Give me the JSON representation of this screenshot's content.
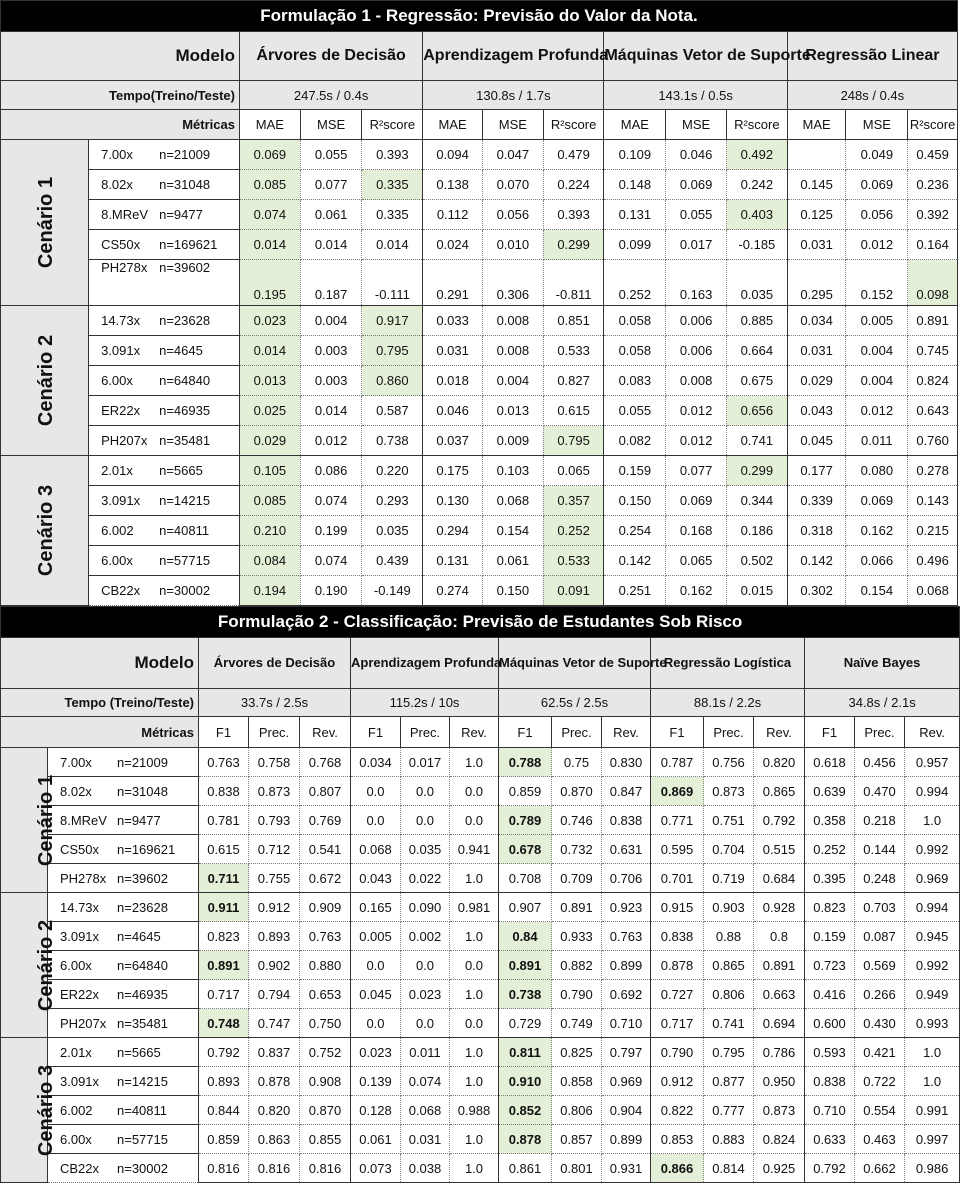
{
  "f1": {
    "title": "Formulação 1 - Regressão: Previsão do Valor da Nota.",
    "model_label": "Modelo",
    "time_label": "Tempo(Treino/Teste)",
    "metrics_label": "Métricas",
    "models": [
      {
        "name": "Árvores de Decisão",
        "time": "247.5s / 0.4s"
      },
      {
        "name": "Aprendizagem Profunda",
        "time": "130.8s / 1.7s"
      },
      {
        "name": "Máquinas Vetor de Suporte",
        "time": "143.1s / 0.5s"
      },
      {
        "name": "Regressão Linear",
        "time": "248s / 0.4s"
      }
    ],
    "metric_names": [
      "MAE",
      "MSE",
      "R²score"
    ],
    "scenarios": [
      {
        "label": "Cenário 1",
        "rows": [
          {
            "course": "7.00x",
            "n": "n=21009",
            "values": [
              "0.069",
              "0.055",
              "0.393",
              "0.094",
              "0.047",
              "0.479",
              "0.109",
              "0.046",
              "0.492",
              "",
              "0.049",
              "0.459"
            ],
            "hl": [
              0,
              8
            ]
          },
          {
            "course": "8.02x",
            "n": "n=31048",
            "values": [
              "0.085",
              "0.077",
              "0.335",
              "0.138",
              "0.070",
              "0.224",
              "0.148",
              "0.069",
              "0.242",
              "0.145",
              "0.069",
              "0.236"
            ],
            "hl": [
              0,
              2
            ]
          },
          {
            "course": "8.MReV",
            "n": "n=9477",
            "values": [
              "0.074",
              "0.061",
              "0.335",
              "0.112",
              "0.056",
              "0.393",
              "0.131",
              "0.055",
              "0.403",
              "0.125",
              "0.056",
              "0.392"
            ],
            "hl": [
              0,
              8
            ]
          },
          {
            "course": "CS50x",
            "n": "n=169621",
            "values": [
              "0.014",
              "0.014",
              "0.014",
              "0.024",
              "0.010",
              "0.299",
              "0.099",
              "0.017",
              "-0.185",
              "0.031",
              "0.012",
              "0.164"
            ],
            "hl": [
              0,
              5
            ]
          },
          {
            "course": "PH278x",
            "n": "n=39602",
            "values": [
              "0.195",
              "0.187",
              "-0.111",
              "0.291",
              "0.306",
              "-0.811",
              "0.252",
              "0.163",
              "0.035",
              "0.295",
              "0.152",
              "0.098"
            ],
            "hl": [
              0,
              11
            ],
            "tall": true
          }
        ]
      },
      {
        "label": "Cenário 2",
        "rows": [
          {
            "course": "14.73x",
            "n": "n=23628",
            "values": [
              "0.023",
              "0.004",
              "0.917",
              "0.033",
              "0.008",
              "0.851",
              "0.058",
              "0.006",
              "0.885",
              "0.034",
              "0.005",
              "0.891"
            ],
            "hl": [
              0,
              2
            ]
          },
          {
            "course": "3.091x",
            "n": "n=4645",
            "values": [
              "0.014",
              "0.003",
              "0.795",
              "0.031",
              "0.008",
              "0.533",
              "0.058",
              "0.006",
              "0.664",
              "0.031",
              "0.004",
              "0.745"
            ],
            "hl": [
              0,
              2
            ]
          },
          {
            "course": "6.00x",
            "n": "n=64840",
            "values": [
              "0.013",
              "0.003",
              "0.860",
              "0.018",
              "0.004",
              "0.827",
              "0.083",
              "0.008",
              "0.675",
              "0.029",
              "0.004",
              "0.824"
            ],
            "hl": [
              0,
              2
            ]
          },
          {
            "course": "ER22x",
            "n": "n=46935",
            "values": [
              "0.025",
              "0.014",
              "0.587",
              "0.046",
              "0.013",
              "0.615",
              "0.055",
              "0.012",
              "0.656",
              "0.043",
              "0.012",
              "0.643"
            ],
            "hl": [
              0,
              8
            ]
          },
          {
            "course": "PH207x",
            "n": "n=35481",
            "values": [
              "0.029",
              "0.012",
              "0.738",
              "0.037",
              "0.009",
              "0.795",
              "0.082",
              "0.012",
              "0.741",
              "0.045",
              "0.011",
              "0.760"
            ],
            "hl": [
              0,
              5
            ]
          }
        ]
      },
      {
        "label": "Cenário 3",
        "rows": [
          {
            "course": "2.01x",
            "n": "n=5665",
            "values": [
              "0.105",
              "0.086",
              "0.220",
              "0.175",
              "0.103",
              "0.065",
              "0.159",
              "0.077",
              "0.299",
              "0.177",
              "0.080",
              "0.278"
            ],
            "hl": [
              0,
              8
            ]
          },
          {
            "course": "3.091x",
            "n": "n=14215",
            "values": [
              "0.085",
              "0.074",
              "0.293",
              "0.130",
              "0.068",
              "0.357",
              "0.150",
              "0.069",
              "0.344",
              "0.339",
              "0.069",
              "0.143"
            ],
            "hl": [
              0,
              5
            ]
          },
          {
            "course": "6.002",
            "n": "n=40811",
            "values": [
              "0.210",
              "0.199",
              "0.035",
              "0.294",
              "0.154",
              "0.252",
              "0.254",
              "0.168",
              "0.186",
              "0.318",
              "0.162",
              "0.215"
            ],
            "hl": [
              0,
              5
            ]
          },
          {
            "course": "6.00x",
            "n": "n=57715",
            "values": [
              "0.084",
              "0.074",
              "0.439",
              "0.131",
              "0.061",
              "0.533",
              "0.142",
              "0.065",
              "0.502",
              "0.142",
              "0.066",
              "0.496"
            ],
            "hl": [
              0,
              5
            ]
          },
          {
            "course": "CB22x",
            "n": "n=30002",
            "values": [
              "0.194",
              "0.190",
              "-0.149",
              "0.274",
              "0.150",
              "0.091",
              "0.251",
              "0.162",
              "0.015",
              "0.302",
              "0.154",
              "0.068"
            ],
            "hl": [
              0,
              5
            ]
          }
        ]
      }
    ]
  },
  "f2": {
    "title": "Formulação 2 - Classificação: Previsão de Estudantes Sob Risco",
    "model_label": "Modelo",
    "time_label": "Tempo (Treino/Teste)",
    "metrics_label": "Métricas",
    "models": [
      {
        "name": "Árvores de Decisão",
        "time": "33.7s / 2.5s"
      },
      {
        "name": "Aprendizagem Profunda",
        "time": "115.2s / 10s"
      },
      {
        "name": "Máquinas Vetor de Suporte",
        "time": "62.5s / 2.5s"
      },
      {
        "name": "Regressão Logística",
        "time": "88.1s / 2.2s"
      },
      {
        "name": "Naïve Bayes",
        "time": "34.8s / 2.1s"
      }
    ],
    "metric_names": [
      "F1",
      "Prec.",
      "Rev."
    ],
    "scenarios": [
      {
        "label": "Cenário 1",
        "rows": [
          {
            "course": "7.00x",
            "n": "n=21009",
            "values": [
              "0.763",
              "0.758",
              "0.768",
              "0.034",
              "0.017",
              "1.0",
              "0.788",
              "0.75",
              "0.830",
              "0.787",
              "0.756",
              "0.820",
              "0.618",
              "0.456",
              "0.957"
            ],
            "hl": [
              6
            ]
          },
          {
            "course": "8.02x",
            "n": "n=31048",
            "values": [
              "0.838",
              "0.873",
              "0.807",
              "0.0",
              "0.0",
              "0.0",
              "0.859",
              "0.870",
              "0.847",
              "0.869",
              "0.873",
              "0.865",
              "0.639",
              "0.470",
              "0.994"
            ],
            "hl": [
              9
            ]
          },
          {
            "course": "8.MReV",
            "n": "n=9477",
            "values": [
              "0.781",
              "0.793",
              "0.769",
              "0.0",
              "0.0",
              "0.0",
              "0.789",
              "0.746",
              "0.838",
              "0.771",
              "0.751",
              "0.792",
              "0.358",
              "0.218",
              "1.0"
            ],
            "hl": [
              6
            ]
          },
          {
            "course": "CS50x",
            "n": "n=169621",
            "values": [
              "0.615",
              "0.712",
              "0.541",
              "0.068",
              "0.035",
              "0.941",
              "0.678",
              "0.732",
              "0.631",
              "0.595",
              "0.704",
              "0.515",
              "0.252",
              "0.144",
              "0.992"
            ],
            "hl": [
              6
            ]
          },
          {
            "course": "PH278x",
            "n": "n=39602",
            "values": [
              "0.711",
              "0.755",
              "0.672",
              "0.043",
              "0.022",
              "1.0",
              "0.708",
              "0.709",
              "0.706",
              "0.701",
              "0.719",
              "0.684",
              "0.395",
              "0.248",
              "0.969"
            ],
            "hl": [
              0
            ]
          }
        ]
      },
      {
        "label": "Cenário 2",
        "rows": [
          {
            "course": "14.73x",
            "n": "n=23628",
            "values": [
              "0.911",
              "0.912",
              "0.909",
              "0.165",
              "0.090",
              "0.981",
              "0.907",
              "0.891",
              "0.923",
              "0.915",
              "0.903",
              "0.928",
              "0.823",
              "0.703",
              "0.994"
            ],
            "hl": [
              0
            ]
          },
          {
            "course": "3.091x",
            "n": "n=4645",
            "values": [
              "0.823",
              "0.893",
              "0.763",
              "0.005",
              "0.002",
              "1.0",
              "0.84",
              "0.933",
              "0.763",
              "0.838",
              "0.88",
              "0.8",
              "0.159",
              "0.087",
              "0.945"
            ],
            "hl": [
              6
            ]
          },
          {
            "course": "6.00x",
            "n": "n=64840",
            "values": [
              "0.891",
              "0.902",
              "0.880",
              "0.0",
              "0.0",
              "0.0",
              "0.891",
              "0.882",
              "0.899",
              "0.878",
              "0.865",
              "0.891",
              "0.723",
              "0.569",
              "0.992"
            ],
            "hl": [
              0,
              6
            ]
          },
          {
            "course": "ER22x",
            "n": "n=46935",
            "values": [
              "0.717",
              "0.794",
              "0.653",
              "0.045",
              "0.023",
              "1.0",
              "0.738",
              "0.790",
              "0.692",
              "0.727",
              "0.806",
              "0.663",
              "0.416",
              "0.266",
              "0.949"
            ],
            "hl": [
              6
            ]
          },
          {
            "course": "PH207x",
            "n": "n=35481",
            "values": [
              "0.748",
              "0.747",
              "0.750",
              "0.0",
              "0.0",
              "0.0",
              "0.729",
              "0.749",
              "0.710",
              "0.717",
              "0.741",
              "0.694",
              "0.600",
              "0.430",
              "0.993"
            ],
            "hl": [
              0
            ]
          }
        ]
      },
      {
        "label": "Cenário 3",
        "rows": [
          {
            "course": "2.01x",
            "n": "n=5665",
            "values": [
              "0.792",
              "0.837",
              "0.752",
              "0.023",
              "0.011",
              "1.0",
              "0.811",
              "0.825",
              "0.797",
              "0.790",
              "0.795",
              "0.786",
              "0.593",
              "0.421",
              "1.0"
            ],
            "hl": [
              6
            ]
          },
          {
            "course": "3.091x",
            "n": "n=14215",
            "values": [
              "0.893",
              "0.878",
              "0.908",
              "0.139",
              "0.074",
              "1.0",
              "0.910",
              "0.858",
              "0.969",
              "0.912",
              "0.877",
              "0.950",
              "0.838",
              "0.722",
              "1.0"
            ],
            "hl": [
              6
            ]
          },
          {
            "course": "6.002",
            "n": "n=40811",
            "values": [
              "0.844",
              "0.820",
              "0.870",
              "0.128",
              "0.068",
              "0.988",
              "0.852",
              "0.806",
              "0.904",
              "0.822",
              "0.777",
              "0.873",
              "0.710",
              "0.554",
              "0.991"
            ],
            "hl": [
              6
            ]
          },
          {
            "course": "6.00x",
            "n": "n=57715",
            "values": [
              "0.859",
              "0.863",
              "0.855",
              "0.061",
              "0.031",
              "1.0",
              "0.878",
              "0.857",
              "0.899",
              "0.853",
              "0.883",
              "0.824",
              "0.633",
              "0.463",
              "0.997"
            ],
            "hl": [
              6
            ]
          },
          {
            "course": "CB22x",
            "n": "n=30002",
            "values": [
              "0.816",
              "0.816",
              "0.816",
              "0.073",
              "0.038",
              "1.0",
              "0.861",
              "0.801",
              "0.931",
              "0.866",
              "0.814",
              "0.925",
              "0.792",
              "0.662",
              "0.986"
            ],
            "hl": [
              9
            ]
          }
        ]
      }
    ]
  }
}
